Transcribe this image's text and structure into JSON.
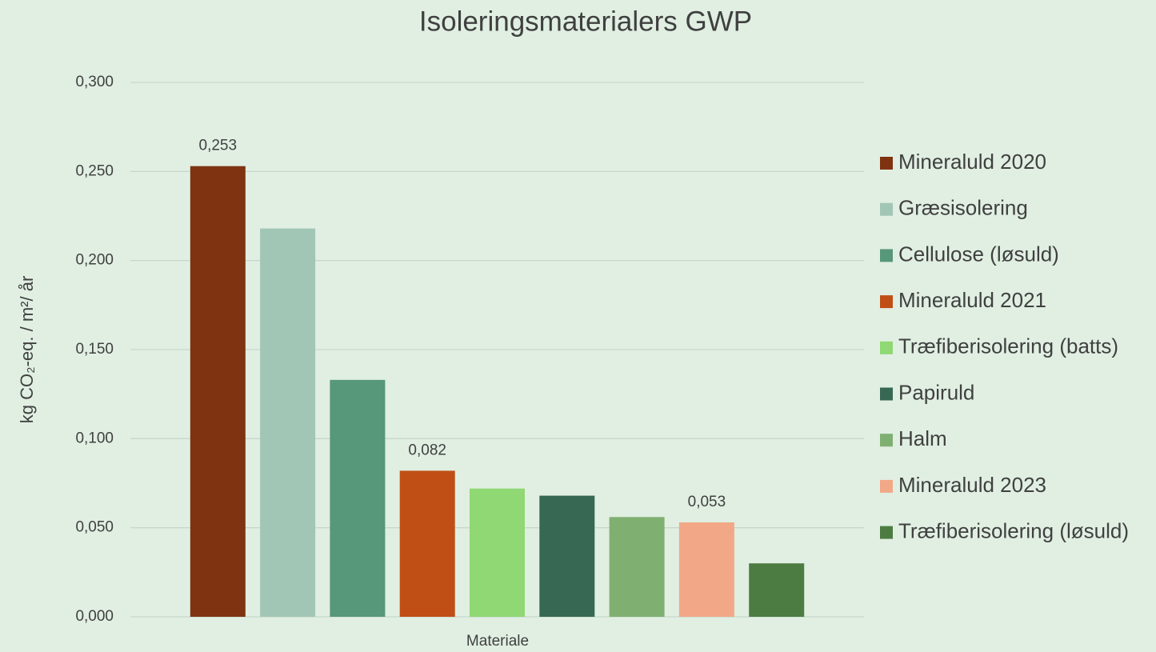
{
  "chart_data": {
    "type": "bar",
    "title": "Isoleringsmaterialers GWP",
    "x_label": "Materiale",
    "y_label": "kg CO₂-eq. / m²/ år",
    "categories": [
      "Materiale"
    ],
    "series": [
      {
        "name": "Mineraluld 2020",
        "color": "#7f3310",
        "values": [
          0.253
        ],
        "value_labels": [
          "0,253"
        ]
      },
      {
        "name": "Græsisolering",
        "color": "#a2c6b6",
        "values": [
          0.218
        ]
      },
      {
        "name": "Cellulose (løsuld)",
        "color": "#57977a",
        "values": [
          0.133
        ]
      },
      {
        "name": "Mineraluld 2021",
        "color": "#c04f15",
        "values": [
          0.082
        ],
        "value_labels": [
          "0,082"
        ]
      },
      {
        "name": "Træfiberisolering (batts)",
        "color": "#8fd873",
        "values": [
          0.072
        ]
      },
      {
        "name": "Papiruld",
        "color": "#376853",
        "values": [
          0.068
        ]
      },
      {
        "name": "Halm",
        "color": "#80b071",
        "values": [
          0.056
        ]
      },
      {
        "name": "Mineraluld 2023",
        "color": "#f2a886",
        "values": [
          0.053
        ],
        "value_labels": [
          "0,053"
        ]
      },
      {
        "name": "Træfiberisolering (løsuld)",
        "color": "#4d7c43",
        "values": [
          0.03
        ]
      }
    ],
    "ylim": [
      0,
      0.3
    ],
    "yticks": [
      {
        "value": 0,
        "label": "0,000"
      },
      {
        "value": 0.05,
        "label": "0,050"
      },
      {
        "value": 0.1,
        "label": "0,100"
      },
      {
        "value": 0.15,
        "label": "0,150"
      },
      {
        "value": 0.2,
        "label": "0,200"
      },
      {
        "value": 0.25,
        "label": "0,250"
      },
      {
        "value": 0.3,
        "label": "0,300"
      }
    ],
    "grid": true,
    "legend": "right"
  }
}
